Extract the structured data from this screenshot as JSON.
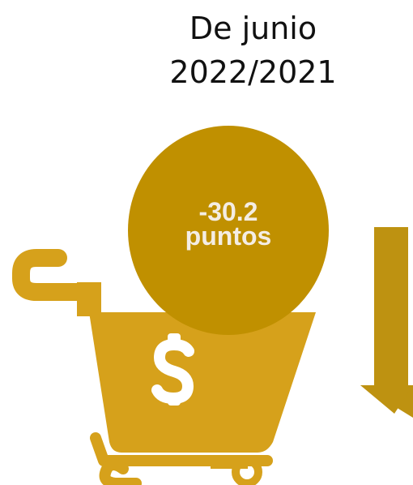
{
  "title": {
    "line1": "De junio",
    "line2": "2022/2021"
  },
  "indicator": {
    "value": "-30.2",
    "unit": "puntos",
    "direction": "down"
  },
  "icons": {
    "cart": "shopping-cart-icon",
    "currency": "dollar-sign-icon",
    "arrow": "arrow-down-icon"
  },
  "colors": {
    "cart": "#D6A11B",
    "bubble": "#C09000",
    "arrow": "#BE9211",
    "bubble_text": "#F4EDE4",
    "title_text": "#111111"
  }
}
